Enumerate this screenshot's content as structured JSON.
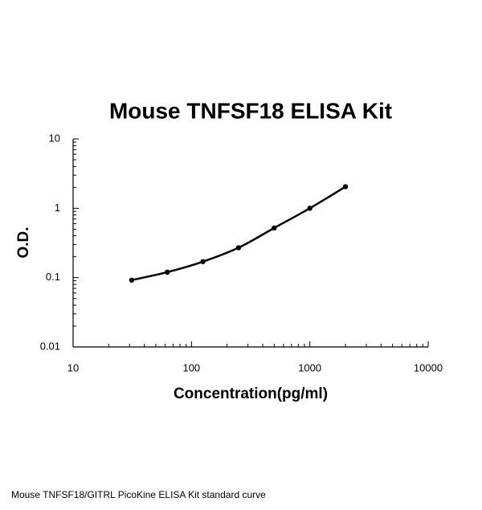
{
  "chart_data": {
    "type": "line",
    "title": "Mouse TNFSF18 ELISA Kit",
    "x_label": "Concentration(pg/ml)",
    "y_label": "O.D.",
    "caption": "Mouse TNFSF18/GITRL PicoKine ELISA Kit standard curve",
    "x": [
      31.25,
      62.5,
      125,
      250,
      500,
      1000,
      2000
    ],
    "series": [
      {
        "color": "#000000",
        "values": [
          0.092,
          0.12,
          0.17,
          0.27,
          0.52,
          1.0,
          2.05
        ]
      }
    ],
    "xscale": "log",
    "yscale": "log",
    "xlim": [
      10,
      10000
    ],
    "xticks": [
      10,
      100,
      1000,
      10000
    ],
    "ylim": [
      0.01,
      10
    ],
    "yticks": [
      0.01,
      0.1,
      1,
      10
    ]
  }
}
